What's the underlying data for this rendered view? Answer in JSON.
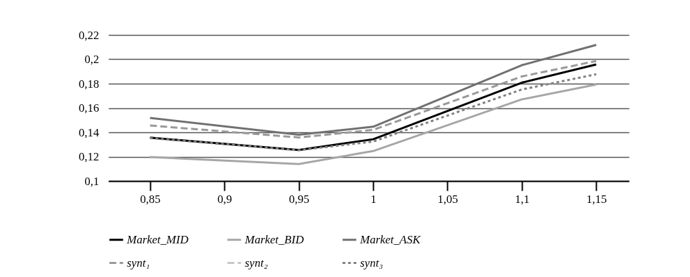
{
  "chart_data": {
    "type": "line",
    "x": [
      0.85,
      0.95,
      1,
      1.1,
      1.15
    ],
    "series": [
      {
        "name": "synt₂",
        "color": "#c8c8c8",
        "line_style": "dashed",
        "values": [
          0.1356,
          0.1255,
          0.1343,
          0.1808,
          0.1958
        ]
      },
      {
        "name": "Market_MID",
        "color": "#000000",
        "line_style": "solid",
        "values": [
          0.1356,
          0.1255,
          0.1343,
          0.1808,
          0.1958
        ]
      },
      {
        "name": "Market_BID",
        "color": "#a6a6a6",
        "line_style": "solid",
        "values": [
          0.1197,
          0.114,
          0.1246,
          0.1671,
          0.1793
        ]
      },
      {
        "name": "Market_ASK",
        "color": "#707070",
        "line_style": "solid",
        "values": [
          0.1518,
          0.138,
          0.1446,
          0.1952,
          0.2118
        ]
      },
      {
        "name": "synt₁",
        "color": "#999999",
        "line_style": "dashed",
        "values": [
          0.1456,
          0.1358,
          0.142,
          0.1859,
          0.1986
        ]
      },
      {
        "name": "synt₃",
        "color": "#808080",
        "line_style": "dotted",
        "values": [
          0.1353,
          0.1253,
          0.1324,
          0.1752,
          0.1877
        ]
      }
    ],
    "xlim": [
      0.822,
      1.172
    ],
    "xticks": [
      {
        "value": 0.85,
        "label": "0,85"
      },
      {
        "value": 0.9,
        "label": "0,9"
      },
      {
        "value": 0.95,
        "label": "0,95"
      },
      {
        "value": 1,
        "label": "1"
      },
      {
        "value": 1.05,
        "label": "1,05"
      },
      {
        "value": 1.1,
        "label": "1,1"
      },
      {
        "value": 1.15,
        "label": "1,15"
      }
    ],
    "ylim": [
      0.1,
      0.22
    ],
    "yticks": [
      {
        "value": 0.1,
        "label": "0,1"
      },
      {
        "value": 0.12,
        "label": "0,12"
      },
      {
        "value": 0.14,
        "label": "0,14"
      },
      {
        "value": 0.16,
        "label": "0,16"
      },
      {
        "value": 0.18,
        "label": "0,18"
      },
      {
        "value": 0.2,
        "label": "0,2"
      },
      {
        "value": 0.22,
        "label": "0,22"
      }
    ],
    "grid": "y",
    "legend": "bottom",
    "marker": "none"
  }
}
